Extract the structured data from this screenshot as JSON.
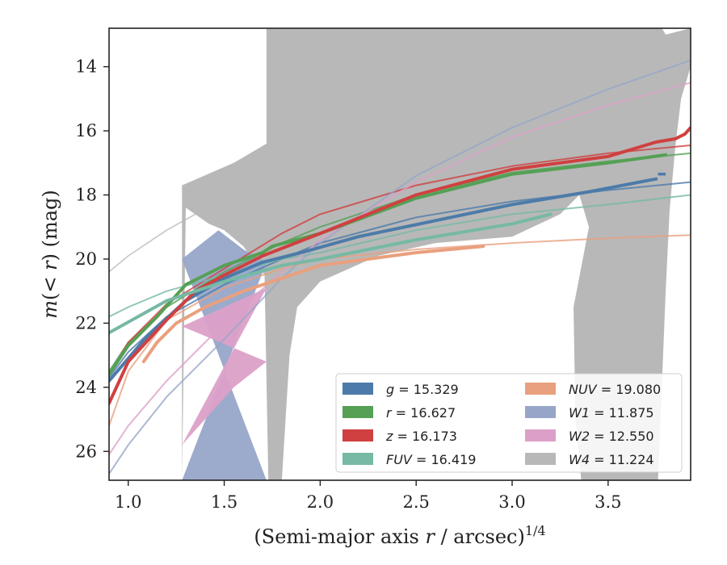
{
  "chart_data": {
    "type": "line",
    "title": "",
    "xlabel": {
      "prefix": "(Semi-major axis ",
      "var": "r",
      "suffix": " / arcsec)",
      "exponent": "1/4"
    },
    "ylabel": {
      "var1": "m",
      "open": "(",
      "lt": "< ",
      "var2": "r",
      "close": ")",
      "unit": " (mag)"
    },
    "xlim": [
      0.9,
      3.93
    ],
    "ylim": [
      26.9,
      12.8
    ],
    "y_inverted": true,
    "xticks": [
      1.0,
      1.5,
      2.0,
      2.5,
      3.0,
      3.5
    ],
    "xtick_labels": [
      "1.0",
      "1.5",
      "2.0",
      "2.5",
      "3.0",
      "3.5"
    ],
    "yticks": [
      14,
      16,
      18,
      20,
      22,
      24,
      26
    ],
    "ytick_labels": [
      "14",
      "16",
      "18",
      "20",
      "22",
      "24",
      "26"
    ],
    "grid": false,
    "legend_position": "lower-right",
    "legend_columns": 2,
    "series": [
      {
        "name": "g",
        "legend_var": "g",
        "legend_value": "= 15.329",
        "color": "#4c7ba9",
        "data": [
          [
            0.9,
            23.7
          ],
          [
            1.0,
            22.9
          ],
          [
            1.2,
            21.8
          ],
          [
            1.5,
            20.8
          ],
          [
            1.8,
            20.0
          ],
          [
            2.0,
            19.5
          ],
          [
            2.5,
            18.7
          ],
          [
            3.0,
            18.2
          ],
          [
            3.5,
            17.85
          ],
          [
            3.93,
            17.6
          ]
        ],
        "data_bold": [
          [
            0.9,
            23.8
          ],
          [
            1.1,
            22.4
          ],
          [
            1.3,
            21.3
          ],
          [
            1.5,
            20.6
          ],
          [
            1.7,
            20.1
          ],
          [
            1.9,
            19.8
          ],
          [
            2.2,
            19.3
          ],
          [
            2.6,
            18.8
          ],
          [
            3.0,
            18.3
          ],
          [
            3.4,
            17.9
          ],
          [
            3.75,
            17.5
          ]
        ],
        "end_marker": [
          [
            3.76,
            17.35
          ],
          [
            3.8,
            17.35
          ]
        ]
      },
      {
        "name": "r",
        "legend_var": "r",
        "legend_value": "= 16.627",
        "color": "#55a055",
        "data": [
          [
            0.9,
            23.5
          ],
          [
            1.0,
            22.6
          ],
          [
            1.2,
            21.5
          ],
          [
            1.5,
            20.4
          ],
          [
            1.8,
            19.5
          ],
          [
            2.0,
            19.0
          ],
          [
            2.5,
            18.0
          ],
          [
            3.0,
            17.3
          ],
          [
            3.5,
            16.95
          ],
          [
            3.93,
            16.7
          ]
        ],
        "data_bold": [
          [
            0.9,
            23.6
          ],
          [
            1.0,
            22.7
          ],
          [
            1.15,
            21.8
          ],
          [
            1.3,
            20.8
          ],
          [
            1.5,
            20.2
          ],
          [
            1.7,
            19.8
          ],
          [
            1.75,
            19.6
          ],
          [
            2.0,
            19.2
          ],
          [
            2.5,
            18.1
          ],
          [
            3.0,
            17.35
          ],
          [
            3.5,
            17.0
          ],
          [
            3.8,
            16.75
          ]
        ]
      },
      {
        "name": "z",
        "legend_var": "z",
        "legend_value": "= 16.173",
        "color": "#d04040",
        "data": [
          [
            0.9,
            23.6
          ],
          [
            1.0,
            22.6
          ],
          [
            1.2,
            21.4
          ],
          [
            1.5,
            20.3
          ],
          [
            1.8,
            19.2
          ],
          [
            2.0,
            18.6
          ],
          [
            2.5,
            17.7
          ],
          [
            3.0,
            17.1
          ],
          [
            3.5,
            16.7
          ],
          [
            3.93,
            16.45
          ]
        ],
        "data_bold": [
          [
            0.9,
            24.5
          ],
          [
            1.0,
            23.2
          ],
          [
            1.2,
            21.9
          ],
          [
            1.35,
            21.0
          ],
          [
            1.5,
            20.5
          ],
          [
            1.7,
            19.9
          ],
          [
            2.0,
            19.2
          ],
          [
            2.5,
            18.0
          ],
          [
            3.0,
            17.2
          ],
          [
            3.5,
            16.8
          ],
          [
            3.75,
            16.35
          ],
          [
            3.85,
            16.25
          ],
          [
            3.9,
            16.1
          ],
          [
            3.93,
            15.9
          ]
        ]
      },
      {
        "name": "FUV",
        "legend_var": "FUV",
        "legend_value": "= 16.419",
        "color": "#76b9a5",
        "data": [
          [
            0.9,
            21.8
          ],
          [
            1.0,
            21.5
          ],
          [
            1.2,
            21.0
          ],
          [
            1.5,
            20.5
          ],
          [
            1.8,
            20.0
          ],
          [
            2.0,
            19.8
          ],
          [
            2.5,
            19.1
          ],
          [
            3.0,
            18.6
          ],
          [
            3.5,
            18.3
          ],
          [
            3.93,
            18.0
          ]
        ],
        "data_bold": [
          [
            0.9,
            22.3
          ],
          [
            1.2,
            21.3
          ],
          [
            1.5,
            20.7
          ],
          [
            1.8,
            20.2
          ],
          [
            2.0,
            20.0
          ],
          [
            2.5,
            19.4
          ],
          [
            3.0,
            18.9
          ],
          [
            3.2,
            18.6
          ]
        ]
      },
      {
        "name": "NUV",
        "legend_var": "NUV",
        "legend_value": "= 19.080",
        "color": "#e9a07e",
        "data": [
          [
            0.9,
            25.2
          ],
          [
            1.0,
            23.5
          ],
          [
            1.2,
            21.9
          ],
          [
            1.5,
            20.9
          ],
          [
            1.8,
            20.3
          ],
          [
            2.0,
            20.0
          ],
          [
            2.5,
            19.7
          ],
          [
            3.0,
            19.5
          ],
          [
            3.5,
            19.35
          ],
          [
            3.93,
            19.25
          ]
        ],
        "data_bold": [
          [
            1.08,
            23.2
          ],
          [
            1.15,
            22.6
          ],
          [
            1.25,
            22.0
          ],
          [
            1.4,
            21.5
          ],
          [
            1.6,
            21.0
          ],
          [
            1.8,
            20.6
          ],
          [
            2.0,
            20.2
          ],
          [
            2.5,
            19.8
          ],
          [
            2.85,
            19.6
          ]
        ]
      },
      {
        "name": "W1",
        "legend_var": "W1",
        "legend_value": "= 11.875",
        "color": "#97a6c8",
        "data": [
          [
            0.9,
            26.7
          ],
          [
            1.0,
            25.8
          ],
          [
            1.2,
            24.3
          ],
          [
            1.5,
            22.5
          ],
          [
            1.8,
            20.6
          ],
          [
            2.0,
            19.5
          ],
          [
            2.5,
            17.4
          ],
          [
            3.0,
            15.9
          ],
          [
            3.5,
            14.7
          ],
          [
            3.93,
            13.8
          ]
        ],
        "band_upper": [
          [
            1.28,
            20.0
          ],
          [
            1.47,
            19.1
          ],
          [
            1.6,
            19.7
          ],
          [
            1.72,
            20.1
          ]
        ],
        "band_lower": [
          [
            1.28,
            26.9
          ],
          [
            1.72,
            26.9
          ]
        ]
      },
      {
        "name": "W2",
        "legend_var": "W2",
        "legend_value": "= 12.550",
        "color": "#dca0c8",
        "data": [
          [
            0.9,
            26.1
          ],
          [
            1.0,
            25.2
          ],
          [
            1.2,
            23.8
          ],
          [
            1.5,
            22.0
          ],
          [
            1.8,
            20.4
          ],
          [
            2.0,
            19.4
          ],
          [
            2.5,
            17.6
          ],
          [
            3.0,
            16.2
          ],
          [
            3.5,
            15.2
          ],
          [
            3.93,
            14.5
          ]
        ],
        "band_upper": [
          [
            1.28,
            22.1
          ],
          [
            1.5,
            21.5
          ],
          [
            1.72,
            20.9
          ]
        ],
        "band_lower": [
          [
            1.28,
            25.8
          ],
          [
            1.55,
            24.0
          ],
          [
            1.72,
            23.2
          ]
        ]
      },
      {
        "name": "W4",
        "legend_var": "W4",
        "legend_value": "= 11.224",
        "color": "#b8b8b8",
        "data": [
          [
            0.9,
            20.4
          ],
          [
            1.0,
            19.9
          ],
          [
            1.2,
            19.1
          ],
          [
            1.5,
            18.1
          ],
          [
            2.0,
            16.8
          ],
          [
            2.5,
            15.7
          ],
          [
            3.0,
            14.8
          ],
          [
            3.5,
            14.0
          ],
          [
            3.93,
            13.4
          ]
        ],
        "band_upper": [
          [
            1.28,
            17.7
          ],
          [
            1.55,
            17.0
          ],
          [
            1.72,
            16.4
          ],
          [
            1.72,
            12.8
          ],
          [
            3.78,
            12.8
          ],
          [
            3.8,
            13.0
          ],
          [
            3.93,
            12.8
          ]
        ],
        "band_lower": [
          [
            3.93,
            14.0
          ],
          [
            3.88,
            15.0
          ],
          [
            3.85,
            16.5
          ],
          [
            3.82,
            18.5
          ],
          [
            3.8,
            21.0
          ],
          [
            3.76,
            26.9
          ],
          [
            3.36,
            26.9
          ],
          [
            3.33,
            25.0
          ],
          [
            3.32,
            21.5
          ],
          [
            3.4,
            19.0
          ],
          [
            3.35,
            18.0
          ],
          [
            3.25,
            18.6
          ],
          [
            3.0,
            19.3
          ],
          [
            2.6,
            19.5
          ],
          [
            2.3,
            19.9
          ],
          [
            2.0,
            20.7
          ],
          [
            1.88,
            21.5
          ],
          [
            1.84,
            23.0
          ],
          [
            1.8,
            26.9
          ],
          [
            1.73,
            26.9
          ],
          [
            1.71,
            20.5
          ],
          [
            1.6,
            19.6
          ],
          [
            1.5,
            19.1
          ],
          [
            1.42,
            18.9
          ],
          [
            1.3,
            18.4
          ],
          [
            1.28,
            26.9
          ]
        ]
      }
    ]
  }
}
